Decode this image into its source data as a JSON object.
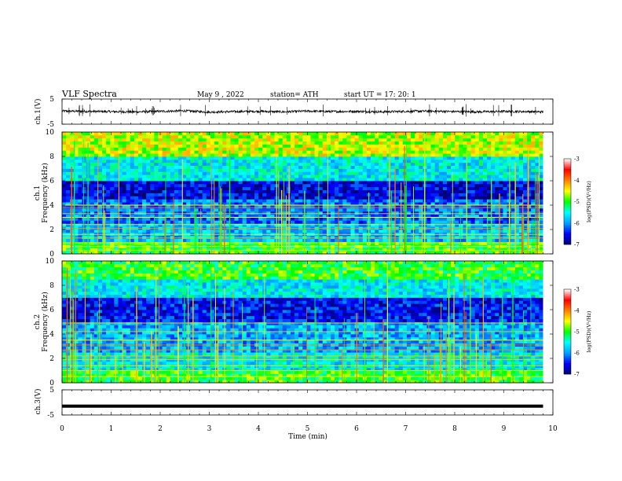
{
  "header": {
    "title": "VLF  Spectra",
    "date": "May 9  , 2022",
    "station": "station= ATH",
    "start": "start  UT  =    17: 20: 1"
  },
  "chart_data": [
    {
      "type": "line",
      "panel": "ch1-waveform",
      "ylabel": "ch.1(V)",
      "ylim": [
        -5,
        5
      ],
      "yticks": [
        "5",
        "-5"
      ],
      "xlim": [
        0,
        10
      ],
      "x": [
        0,
        0.5,
        1,
        1.5,
        2,
        2.5,
        3,
        3.5,
        4,
        4.5,
        5,
        5.5,
        6,
        6.5,
        7,
        7.5,
        8,
        8.5,
        9,
        9.5,
        9.8
      ],
      "y": [
        0.2,
        0.1,
        0.0,
        -0.1,
        0.1,
        0.3,
        -0.2,
        0.0,
        0.1,
        -0.1,
        0.2,
        0.0,
        0.1,
        -0.1,
        0.1,
        0.2,
        0.0,
        -0.1,
        0.1,
        0.0,
        -0.1
      ]
    },
    {
      "type": "heatmap",
      "panel": "ch1-spectrogram",
      "ylabel": "ch.1\nFrequency  (kHz)",
      "ylim": [
        0,
        10
      ],
      "yticks": [
        "0",
        "2",
        "4",
        "6",
        "8",
        "10"
      ],
      "xlim": [
        0,
        9.8
      ],
      "colorbar": {
        "label": "log(PSD)(V²/Hz)",
        "range": [
          -7,
          -3
        ],
        "ticks": [
          "-3",
          "-4",
          "-5",
          "-6",
          "-7"
        ]
      },
      "bands": [
        {
          "from": 0,
          "to": 1,
          "level": -5.0
        },
        {
          "from": 1,
          "to": 2.5,
          "level": -5.8
        },
        {
          "from": 2.5,
          "to": 4.5,
          "level": -6.1
        },
        {
          "from": 4.5,
          "to": 6,
          "level": -6.6
        },
        {
          "from": 6,
          "to": 8,
          "level": -5.6
        },
        {
          "from": 8,
          "to": 10,
          "level": -4.6
        }
      ],
      "lines_khz": [
        0.3,
        0.6,
        0.9,
        1.3,
        1.6,
        2.1,
        2.4,
        3.0,
        3.3,
        3.8,
        4.0
      ]
    },
    {
      "type": "heatmap",
      "panel": "ch2-spectrogram",
      "ylabel": "ch.2\nFrequency  (kHz)",
      "ylim": [
        0,
        10
      ],
      "yticks": [
        "0",
        "2",
        "4",
        "6",
        "8",
        "10"
      ],
      "xlim": [
        0,
        9.8
      ],
      "colorbar": {
        "label": "log(PSD)(V²/Hz)",
        "range": [
          -7,
          -3
        ],
        "ticks": [
          "-3",
          "-4",
          "-5",
          "-6",
          "-7"
        ]
      },
      "bands": [
        {
          "from": 0,
          "to": 1,
          "level": -5.0
        },
        {
          "from": 1,
          "to": 2.5,
          "level": -5.6
        },
        {
          "from": 2.5,
          "to": 5,
          "level": -5.9
        },
        {
          "from": 5,
          "to": 7,
          "level": -6.5
        },
        {
          "from": 7,
          "to": 8.5,
          "level": -5.6
        },
        {
          "from": 8.5,
          "to": 10,
          "level": -5.0
        }
      ],
      "lines_khz": [
        0.5,
        1.0,
        1.4,
        1.9,
        2.2,
        2.7,
        3.1,
        3.5,
        4.2,
        4.9
      ]
    },
    {
      "type": "line",
      "panel": "ch3-waveform",
      "ylabel": "ch.3(V)",
      "ylim": [
        -5,
        5
      ],
      "yticks": [
        "5",
        "-5"
      ],
      "xlim": [
        0,
        10
      ],
      "x": [
        0,
        9.8
      ],
      "y": [
        -1.5,
        -1.5
      ]
    }
  ],
  "x_axis": {
    "label": "Time  (min)",
    "ticks": [
      "0",
      "1",
      "2",
      "3",
      "4",
      "5",
      "6",
      "7",
      "8",
      "9",
      "10"
    ]
  },
  "colors": {
    "trace": "#000000",
    "colormap": [
      "#000070",
      "#0000ff",
      "#00a0ff",
      "#00ffff",
      "#00ff00",
      "#ffff00",
      "#ff8000",
      "#ff0000",
      "#ffffff"
    ]
  }
}
